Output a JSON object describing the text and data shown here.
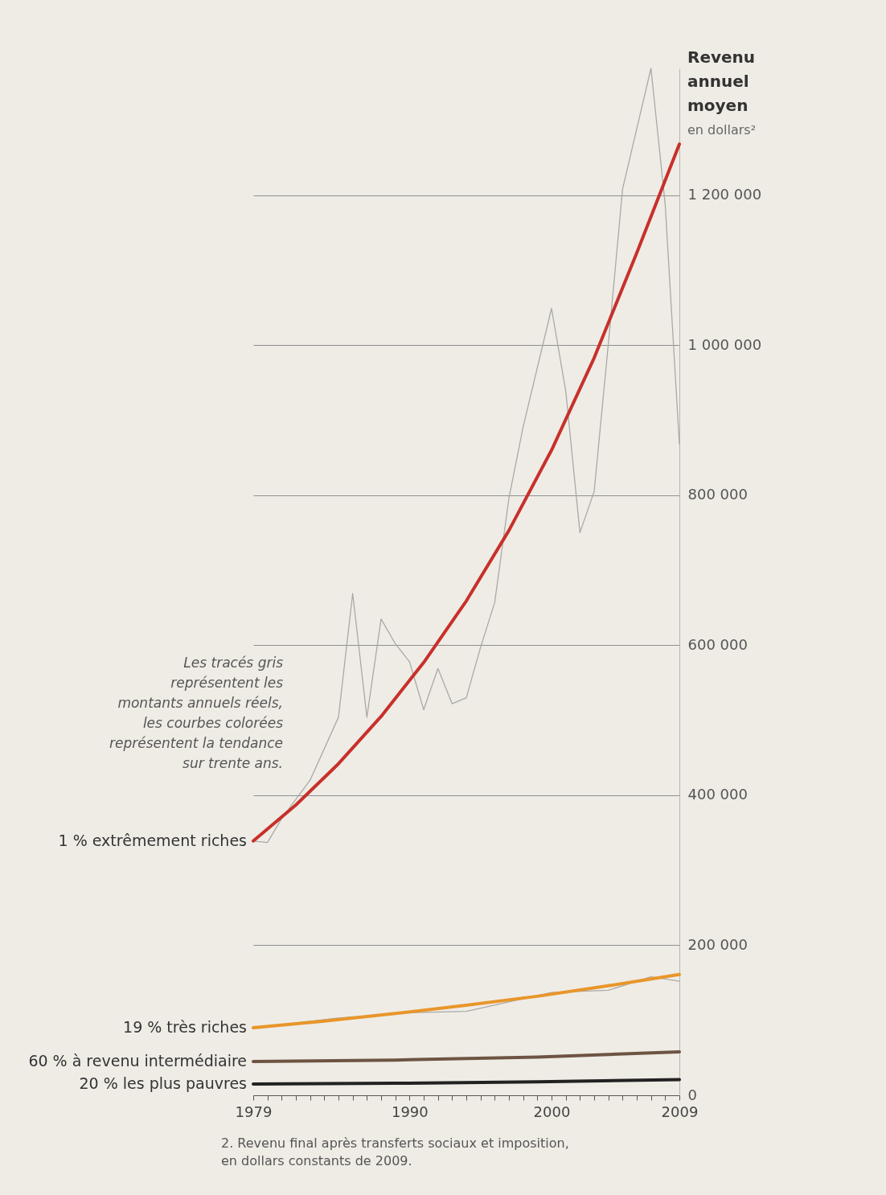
{
  "chart_data": {
    "type": "line",
    "ylabel": "Revenu annuel moyen en dollars²",
    "annotations": [
      "Les tracés gris représentent les montants annuels réels, les courbes colorées représentent la tendance sur trente ans.",
      "2. Revenu final après transferts sociaux et imposition, en dollars constants de 2009."
    ],
    "series": [
      {
        "color": "#a9a9a7",
        "x": [
          1979,
          1980,
          1981,
          1983,
          1985,
          1986,
          1987,
          1988,
          1989,
          1990,
          1991,
          1992,
          1993,
          1994,
          1995,
          1996,
          1997,
          1998,
          2000,
          2001,
          2002,
          2003,
          2004,
          2005,
          2007,
          2008,
          2009
        ],
        "values": [
          339000,
          337000,
          369000,
          420000,
          504000,
          669000,
          504000,
          635000,
          602000,
          578000,
          514000,
          569000,
          522000,
          530000,
          597000,
          657000,
          796000,
          891000,
          1049000,
          939000,
          750000,
          805000,
          1002000,
          1208000,
          1369000,
          1188000,
          868000
        ]
      },
      {
        "name": "1 % extrêmement riches",
        "color": "#c8302a",
        "x": [
          1979,
          1982,
          1985,
          1988,
          1991,
          1994,
          1997,
          2000,
          2003,
          2006,
          2009
        ],
        "values": [
          339000,
          387000,
          442000,
          505000,
          577000,
          659000,
          753000,
          860000,
          983000,
          1123000,
          1268000
        ]
      },
      {
        "color": "#a9a9a7",
        "x": [
          1979,
          1985,
          1990,
          1994,
          2000,
          2004,
          2007,
          2009
        ],
        "values": [
          90000,
          103000,
          110000,
          112000,
          137000,
          140000,
          158000,
          152000
        ]
      },
      {
        "name": "19 % très riches",
        "color": "#e8962a",
        "x": [
          1979,
          1984,
          1989,
          1994,
          1999,
          2004,
          2009
        ],
        "values": [
          90000,
          99000,
          109000,
          120000,
          132000,
          146000,
          161000
        ]
      },
      {
        "name": "60 % à revenu intermédiaire",
        "color": "#6e5443",
        "x": [
          1979,
          1989,
          1999,
          2009
        ],
        "values": [
          45000,
          47000,
          51000,
          58000
        ]
      },
      {
        "name": "20 % les plus pauvres",
        "color": "#222222",
        "x": [
          1979,
          1989,
          1999,
          2009
        ],
        "values": [
          15000,
          16000,
          18000,
          21000
        ]
      }
    ],
    "xlim": [
      1979,
      2009
    ],
    "xticks": [
      1979,
      {
        "value": 1980,
        "label": null
      },
      {
        "value": 1981,
        "label": null
      },
      {
        "value": 1982,
        "label": null
      },
      {
        "value": 1983,
        "label": null
      },
      {
        "value": 1984,
        "label": null
      },
      {
        "value": 1985,
        "label": null
      },
      {
        "value": 1986,
        "label": null
      },
      {
        "value": 1987,
        "label": null
      },
      {
        "value": 1988,
        "label": null
      },
      {
        "value": 1989,
        "label": null
      },
      1990,
      {
        "value": 1991,
        "label": null
      },
      {
        "value": 1992,
        "label": null
      },
      {
        "value": 1993,
        "label": null
      },
      {
        "value": 1994,
        "label": null
      },
      {
        "value": 1995,
        "label": null
      },
      {
        "value": 1996,
        "label": null
      },
      {
        "value": 1997,
        "label": null
      },
      {
        "value": 1998,
        "label": null
      },
      {
        "value": 1999,
        "label": null
      },
      2000,
      {
        "value": 2001,
        "label": null
      },
      {
        "value": 2002,
        "label": null
      },
      {
        "value": 2003,
        "label": null
      },
      {
        "value": 2004,
        "label": null
      },
      {
        "value": 2005,
        "label": null
      },
      {
        "value": 2006,
        "label": null
      },
      {
        "value": 2007,
        "label": null
      },
      {
        "value": 2008,
        "label": null
      },
      2009
    ],
    "ylim": [
      0,
      1369000
    ],
    "yticks": [
      0,
      {
        "value": 200000,
        "label": "200 000"
      },
      {
        "value": 400000,
        "label": "400 000"
      },
      {
        "value": 600000,
        "label": "600 000"
      },
      {
        "value": 800000,
        "label": "800 000"
      },
      {
        "value": 1000000,
        "label": "1 000 000"
      },
      {
        "value": 1200000,
        "label": "1 200 000"
      }
    ],
    "grid": "y",
    "line_style": "solid",
    "marker": "none"
  }
}
